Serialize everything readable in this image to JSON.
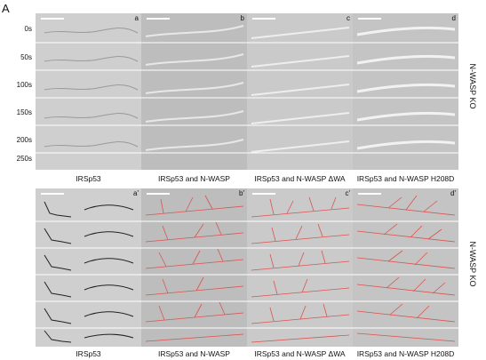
{
  "figure": {
    "panel_letter": "A",
    "time_points": [
      "0s",
      "50s",
      "100s",
      "150s",
      "200s",
      "250s"
    ],
    "columns_top": [
      {
        "letter": "a",
        "label": "IRSp53"
      },
      {
        "letter": "b",
        "label": "IRSp53 and N-WASP"
      },
      {
        "letter": "c",
        "label": "IRSp53 and N-WASP ΔWA"
      },
      {
        "letter": "d",
        "label": "IRSp53 and N-WASP H208D"
      }
    ],
    "columns_bottom": [
      {
        "letter": "a'",
        "label": "IRSp53"
      },
      {
        "letter": "b'",
        "label": "IRSp53 and N-WASP"
      },
      {
        "letter": "c'",
        "label": "IRSp53 and N-WASP ΔWA"
      },
      {
        "letter": "d'",
        "label": "IRSp53 and N-WASP H208D"
      }
    ],
    "side_label_top": "N-WASP KO",
    "side_label_bottom": "N-WASP KO",
    "colors": {
      "tile_bg": "#c9c9c9",
      "tile_bg_alt": "#bdbdbd",
      "annotation": "#d9534f"
    }
  }
}
